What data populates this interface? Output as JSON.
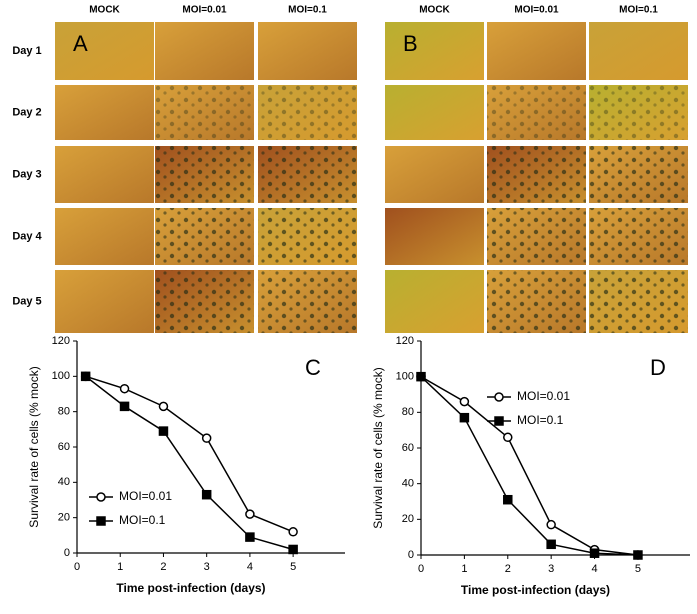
{
  "panels": [
    {
      "label": "A",
      "columns": [
        "MOCK",
        "MOI=0.01",
        "MOI=0.1"
      ],
      "rows": [
        "Day 1",
        "Day 2",
        "Day 3",
        "Day 4",
        "Day 5"
      ]
    },
    {
      "label": "B",
      "columns": [
        "MOCK",
        "MOI=0.01",
        "MOI=0.1"
      ]
    }
  ],
  "chart_data": [
    {
      "type": "line",
      "annotation": "C",
      "x_label": "Time post-infection (days)",
      "y_label": "Survival rate of cells (% mock)",
      "x": [
        0.2,
        1.1,
        2,
        3,
        4,
        5
      ],
      "series": [
        {
          "name": "MOI=0.01",
          "color": "#000000",
          "marker": "circle-open",
          "values": [
            100,
            93,
            83,
            65,
            22,
            12
          ]
        },
        {
          "name": "MOI=0.1",
          "color": "#000000",
          "marker": "square",
          "values": [
            100,
            83,
            69,
            33,
            9,
            2
          ]
        }
      ],
      "xlim": [
        0,
        6.2
      ],
      "xticks": [
        0,
        1,
        2,
        3,
        4,
        5
      ],
      "ylim": [
        0,
        120
      ],
      "yticks": [
        0,
        20,
        40,
        60,
        80,
        100,
        120
      ],
      "legend": "lower left"
    },
    {
      "type": "line",
      "annotation": "D",
      "x_label": "Time post-infection (days)",
      "y_label": "Survival rate of cells (% mock)",
      "x": [
        0,
        1,
        2,
        3,
        4,
        5
      ],
      "series": [
        {
          "name": "MOI=0.01",
          "color": "#000000",
          "marker": "circle-open",
          "values": [
            100,
            86,
            66,
            17,
            3,
            0
          ]
        },
        {
          "name": "MOI=0.1",
          "color": "#000000",
          "marker": "square",
          "values": [
            100,
            77,
            31,
            6,
            1,
            0
          ]
        }
      ],
      "xlim": [
        0,
        6.2
      ],
      "xticks": [
        0,
        1,
        2,
        3,
        4,
        5
      ],
      "ylim": [
        0,
        120
      ],
      "yticks": [
        0,
        20,
        40,
        60,
        80,
        100,
        120
      ],
      "legend": "upper center"
    }
  ]
}
